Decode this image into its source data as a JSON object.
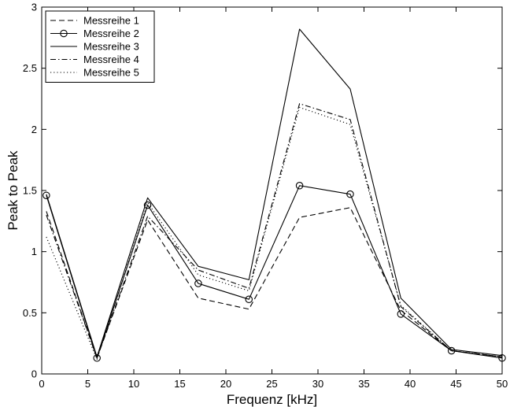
{
  "chart_data": {
    "type": "line",
    "title": "",
    "xlabel": "Frequenz [kHz]",
    "ylabel": "Peak to Peak",
    "xlim": [
      0,
      50
    ],
    "ylim": [
      0,
      3
    ],
    "xticks": [
      "0",
      "5",
      "10",
      "15",
      "20",
      "25",
      "30",
      "35",
      "40",
      "45",
      "50"
    ],
    "yticks": [
      "0",
      "0.5",
      "1",
      "1.5",
      "2",
      "2.5",
      "3"
    ],
    "grid": false,
    "legend_position": "top-left",
    "x": [
      0.5,
      6,
      11.5,
      17,
      22.5,
      28,
      33.5,
      39,
      44.5,
      50
    ],
    "series": [
      {
        "name": "Messreihe 1",
        "style": "dashed",
        "marker": "none",
        "values": [
          1.33,
          0.13,
          1.26,
          0.62,
          0.53,
          1.28,
          1.36,
          0.52,
          0.19,
          0.14
        ]
      },
      {
        "name": "Messreihe 2",
        "style": "solid",
        "marker": "circle",
        "values": [
          1.46,
          0.13,
          1.38,
          0.74,
          0.61,
          1.54,
          1.47,
          0.49,
          0.19,
          0.13
        ]
      },
      {
        "name": "Messreihe 3",
        "style": "solid",
        "marker": "none",
        "values": [
          1.47,
          0.14,
          1.44,
          0.88,
          0.77,
          2.82,
          2.33,
          0.62,
          0.2,
          0.15
        ]
      },
      {
        "name": "Messreihe 4",
        "style": "dashdot",
        "marker": "none",
        "values": [
          1.3,
          0.13,
          1.29,
          0.85,
          0.7,
          2.21,
          2.08,
          0.55,
          0.19,
          0.14
        ]
      },
      {
        "name": "Messreihe 5",
        "style": "dotted",
        "marker": "none",
        "values": [
          1.12,
          0.12,
          1.4,
          0.81,
          0.68,
          2.18,
          2.04,
          0.56,
          0.19,
          0.14
        ]
      }
    ],
    "colors": {
      "line": "#000000",
      "background": "#ffffff"
    }
  }
}
